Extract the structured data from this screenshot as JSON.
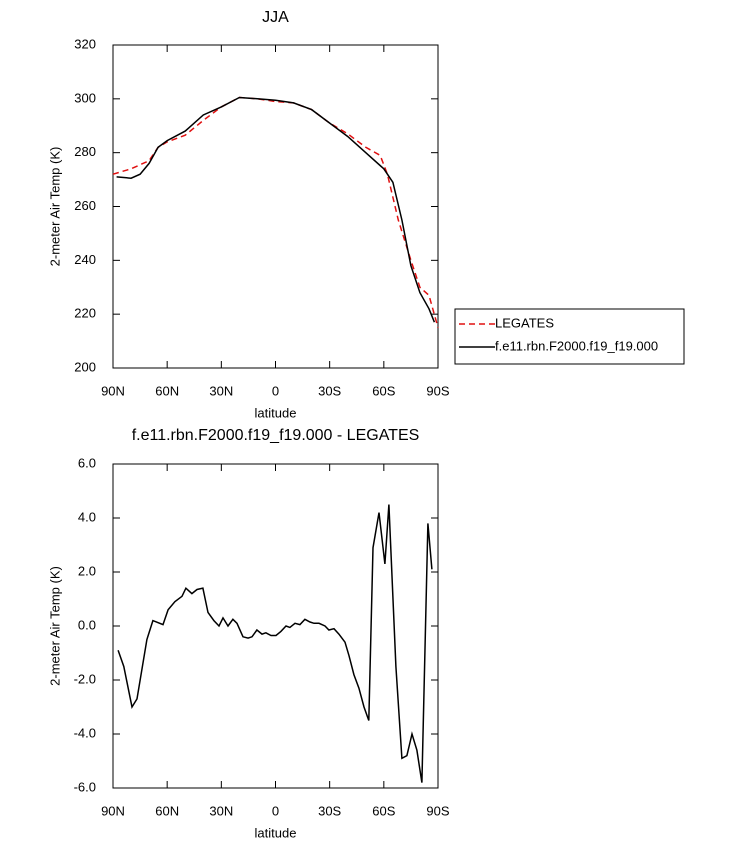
{
  "chart_data": [
    {
      "type": "line",
      "title": "JJA",
      "xlabel": "latitude",
      "ylabel": "2-meter Air Temp (K)",
      "xlim": [
        90,
        -90
      ],
      "xticks": [
        {
          "value": 90,
          "label": "90N"
        },
        {
          "value": 60,
          "label": "60N"
        },
        {
          "value": 30,
          "label": "30N"
        },
        0,
        {
          "value": -30,
          "label": "30S"
        },
        {
          "value": -60,
          "label": "60S"
        },
        {
          "value": -90,
          "label": "90S"
        }
      ],
      "ylim": [
        200,
        320
      ],
      "yticks": [
        200,
        220,
        240,
        260,
        280,
        300,
        320
      ],
      "legend": "right",
      "series": [
        {
          "name": "LEGATES",
          "color": "#e01010",
          "dash": true,
          "x": [
            90,
            80,
            70,
            65,
            60,
            50,
            40,
            30,
            20,
            10,
            0,
            -10,
            -20,
            -30,
            -40,
            -50,
            -58,
            -62,
            -68,
            -75,
            -80,
            -85,
            -90
          ],
          "values": [
            272,
            274,
            277,
            282,
            284,
            286.5,
            292,
            297,
            300.5,
            300,
            299,
            298.5,
            296,
            291,
            287,
            282,
            279,
            272,
            255,
            240,
            230,
            227,
            215
          ]
        },
        {
          "name": "f.e11.rbn.F2000.f19_f19.000",
          "color": "#000000",
          "dash": false,
          "x": [
            88,
            80,
            75,
            70,
            65,
            60,
            50,
            40,
            30,
            20,
            10,
            0,
            -10,
            -20,
            -30,
            -40,
            -50,
            -60,
            -65,
            -70,
            -75,
            -80,
            -85,
            -88
          ],
          "values": [
            271,
            270.5,
            272,
            276,
            282,
            284.5,
            288,
            294,
            297,
            300.5,
            300,
            299.5,
            298.5,
            296,
            291,
            286,
            280,
            274,
            269,
            255,
            238,
            228,
            222,
            217
          ]
        }
      ]
    },
    {
      "type": "line",
      "title": "f.e11.rbn.F2000.f19_f19.000 - LEGATES",
      "xlabel": "latitude",
      "ylabel": "2-meter Air Temp (K)",
      "xlim": [
        90,
        -90
      ],
      "xticks": [
        {
          "value": 90,
          "label": "90N"
        },
        {
          "value": 60,
          "label": "60N"
        },
        {
          "value": 30,
          "label": "30N"
        },
        0,
        {
          "value": -30,
          "label": "30S"
        },
        {
          "value": -60,
          "label": "60S"
        },
        {
          "value": -90,
          "label": "90S"
        }
      ],
      "ylim": [
        -6,
        6
      ],
      "yticks": [
        {
          "value": -6,
          "label": "-6.0"
        },
        {
          "value": -4,
          "label": "-4.0"
        },
        {
          "value": -2,
          "label": "-2.0"
        },
        {
          "value": 0,
          "label": "0.0"
        },
        {
          "value": 2,
          "label": "2.0"
        },
        {
          "value": 4,
          "label": "4.0"
        },
        {
          "value": 6,
          "label": "6.0"
        }
      ],
      "series": [
        {
          "color": "#000000",
          "dash": false,
          "x": [
            87.2,
            84,
            79.5,
            76.7,
            71.2,
            67.9,
            62.3,
            59.5,
            55.7,
            51.8,
            49.6,
            46.3,
            43.5,
            40.2,
            37.4,
            34.1,
            31.3,
            29.1,
            26.3,
            23.6,
            21.3,
            18,
            15.2,
            13,
            10.3,
            7.5,
            5.3,
            2.5,
            -0.3,
            -3,
            -5.8,
            -8,
            -10.8,
            -13.5,
            -16.3,
            -19.1,
            -21.3,
            -24.1,
            -27.4,
            -29.6,
            -32.4,
            -35.1,
            -38.5,
            -40.7,
            -43.4,
            -46.2,
            -49,
            -51.7,
            -54,
            -57.3,
            -60.6,
            -62.8,
            -66.7,
            -70,
            -72.8,
            -75.6,
            -78.3,
            -81.1,
            -84.4,
            -86.6
          ],
          "values": [
            -0.9,
            -1.5,
            -3.0,
            -2.7,
            -0.5,
            0.2,
            0.05,
            0.6,
            0.9,
            1.1,
            1.4,
            1.2,
            1.35,
            1.4,
            0.5,
            0.2,
            0.0,
            0.3,
            0.0,
            0.25,
            0.1,
            -0.4,
            -0.45,
            -0.4,
            -0.15,
            -0.3,
            -0.25,
            -0.35,
            -0.35,
            -0.2,
            0.0,
            -0.05,
            0.1,
            0.05,
            0.25,
            0.15,
            0.1,
            0.1,
            0.0,
            -0.15,
            -0.1,
            -0.3,
            -0.6,
            -1.1,
            -1.8,
            -2.3,
            -3.0,
            -3.5,
            2.9,
            4.2,
            2.3,
            4.5,
            -1.5,
            -4.9,
            -4.8,
            -4.0,
            -4.6,
            -5.8,
            3.8,
            2.1
          ]
        }
      ]
    }
  ]
}
